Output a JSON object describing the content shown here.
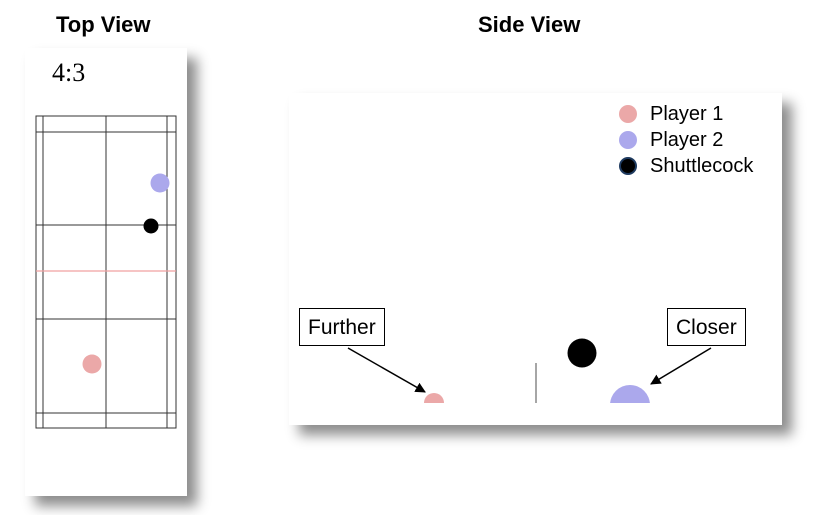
{
  "titles": {
    "top": "Top View",
    "side": "Side View"
  },
  "top_view": {
    "score": "4:3"
  },
  "legend": [
    {
      "label": "Player 1",
      "color": "#eba8a8"
    },
    {
      "label": "Player 2",
      "color": "#aba8ec"
    },
    {
      "label": "Shuttlecock",
      "color": "#000000",
      "outline": "#1e3a5f"
    }
  ],
  "callouts": {
    "further": "Further",
    "closer": "Closer"
  },
  "colors": {
    "court_line": "#333333",
    "net_line": "#f0a0a0",
    "player1": "#eba8a8",
    "player2": "#aba8ec",
    "shuttlecock": "#000000"
  }
}
